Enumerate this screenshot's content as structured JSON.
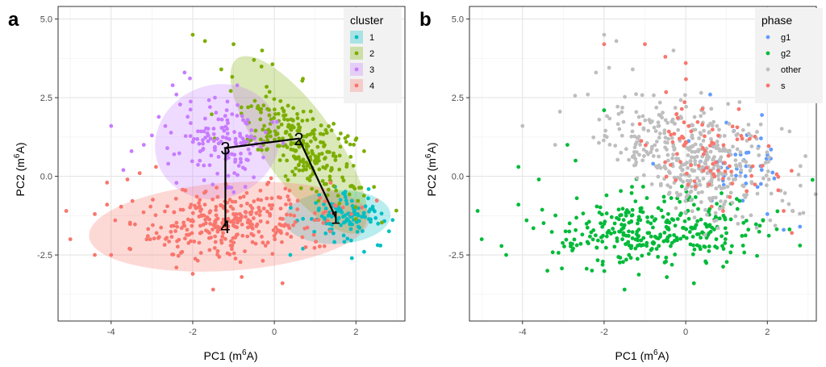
{
  "panels": [
    {
      "tag": "a",
      "legend_title": "cluster"
    },
    {
      "tag": "b",
      "legend_title": "phase"
    }
  ],
  "chart_data": [
    {
      "type": "scatter",
      "panel": "a",
      "xlabel": "PC1 (m6A)",
      "ylabel": "PC2 (m6A)",
      "xlim": [
        -5.3,
        3.2
      ],
      "ylim": [
        -4.6,
        5.4
      ],
      "x_ticks": [
        -4,
        -2,
        0,
        2
      ],
      "y_ticks": [
        -2.5,
        0.0,
        2.5,
        5.0
      ],
      "grid": true,
      "legend_position": "top-right",
      "legend_title": "cluster",
      "series": [
        {
          "name": "1",
          "color": "#00BFC4",
          "n": 110,
          "center": [
            1.7,
            -1.35
          ],
          "sd": [
            0.45,
            0.35
          ],
          "rot": 0.15,
          "sparse": [
            [
              0.7,
              -2.3
            ],
            [
              1.9,
              -2.6
            ],
            [
              2.6,
              -2.2
            ],
            [
              1.1,
              -0.6
            ],
            [
              2.3,
              -0.7
            ],
            [
              0.4,
              -1.0
            ],
            [
              2.2,
              -2.4
            ]
          ]
        },
        {
          "name": "2",
          "color": "#7CAE00",
          "n": 260,
          "center": [
            0.7,
            1.0
          ],
          "sd": [
            1.0,
            0.45
          ],
          "rot": -0.9,
          "sparse": [
            [
              -2.0,
              4.5
            ],
            [
              -1.7,
              4.3
            ],
            [
              -1.0,
              4.2
            ],
            [
              -0.3,
              4.0
            ],
            [
              -0.5,
              3.7
            ],
            [
              -1.3,
              3.4
            ],
            [
              0.7,
              3.1
            ],
            [
              2.2,
              0.8
            ],
            [
              1.9,
              -0.3
            ]
          ]
        },
        {
          "name": "3",
          "color": "#C77CFF",
          "n": 140,
          "center": [
            -1.3,
            1.2
          ],
          "sd": [
            0.6,
            0.7
          ],
          "rot": 0.5,
          "sparse": [
            [
              -4.0,
              1.6
            ],
            [
              -3.2,
              1.0
            ],
            [
              -3.5,
              0.8
            ],
            [
              -2.4,
              2.6
            ],
            [
              -3.0,
              1.3
            ],
            [
              -2.2,
              3.3
            ],
            [
              -2.6,
              0.4
            ],
            [
              -3.7,
              0.2
            ]
          ]
        },
        {
          "name": "4",
          "color": "#F8766D",
          "n": 320,
          "center": [
            -1.0,
            -1.5
          ],
          "sd": [
            1.15,
            0.55
          ],
          "rot": 0.05,
          "sparse": [
            [
              -5.1,
              -1.1
            ],
            [
              -5.0,
              -2.0
            ],
            [
              -4.4,
              -1.2
            ],
            [
              -4.0,
              -2.5
            ],
            [
              -4.4,
              -2.5
            ],
            [
              -4.1,
              -0.9
            ],
            [
              -3.9,
              -1.4
            ],
            [
              -4.1,
              -0.2
            ],
            [
              -3.6,
              -0.1
            ],
            [
              -3.3,
              0.1
            ],
            [
              -3.1,
              -1.9
            ],
            [
              -2.9,
              0.3
            ],
            [
              -2.4,
              -2.9
            ],
            [
              -1.5,
              -3.6
            ],
            [
              0.2,
              -3.4
            ],
            [
              -0.8,
              -3.2
            ],
            [
              -2.0,
              -3.1
            ]
          ]
        }
      ],
      "ellipses": [
        {
          "cluster": "1",
          "color": "#00BFC4",
          "cx": 1.55,
          "cy": -1.3,
          "rx": 1.3,
          "ry": 0.85,
          "rot": 0.05
        },
        {
          "cluster": "2",
          "color": "#7CAE00",
          "cx": 0.6,
          "cy": 1.0,
          "rx": 2.6,
          "ry": 1.15,
          "rot": -0.95
        },
        {
          "cluster": "3",
          "color": "#C77CFF",
          "cx": -1.4,
          "cy": 1.1,
          "rx": 1.55,
          "ry": 1.8,
          "rot": 0.4
        },
        {
          "cluster": "4",
          "color": "#F8766D",
          "cx": -1.1,
          "cy": -1.6,
          "rx": 3.45,
          "ry": 1.4,
          "rot": 0.07
        }
      ],
      "trajectory": [
        [
          -1.2,
          0.9
        ],
        [
          0.6,
          1.2
        ],
        [
          1.5,
          -1.3
        ]
      ],
      "trajectory_branch": [
        [
          -1.2,
          0.9
        ],
        [
          -1.2,
          -1.6
        ]
      ],
      "cluster_labels": [
        {
          "label": "3",
          "x": -1.2,
          "y": 0.9
        },
        {
          "label": "2",
          "x": 0.6,
          "y": 1.2
        },
        {
          "label": "1",
          "x": 1.5,
          "y": -1.3
        },
        {
          "label": "4",
          "x": -1.2,
          "y": -1.6
        }
      ]
    },
    {
      "type": "scatter",
      "panel": "b",
      "xlabel": "PC1 (m6A)",
      "ylabel": "PC2 (m6A)",
      "xlim": [
        -5.3,
        3.2
      ],
      "ylim": [
        -4.6,
        5.4
      ],
      "x_ticks": [
        -4,
        -2,
        0,
        2
      ],
      "y_ticks": [
        -2.5,
        0.0,
        2.5,
        5.0
      ],
      "grid": true,
      "legend_position": "top-right",
      "legend_title": "phase",
      "series": [
        {
          "name": "g1",
          "color": "#619CFF",
          "n": 45,
          "center": [
            1.3,
            0.3
          ],
          "sd": [
            0.6,
            0.7
          ],
          "rot": -0.7,
          "sparse": [
            [
              2.4,
              -1.7
            ],
            [
              2.8,
              -1.6
            ],
            [
              2.0,
              -1.2
            ],
            [
              0.6,
              2.6
            ],
            [
              -0.8,
              0.4
            ]
          ]
        },
        {
          "name": "g2",
          "color": "#00BA38",
          "n": 330,
          "center": [
            -0.6,
            -1.7
          ],
          "sd": [
            1.3,
            0.55
          ],
          "rot": 0.05,
          "sparse": [
            [
              -5.1,
              -1.1
            ],
            [
              -5.0,
              -2.0
            ],
            [
              -4.4,
              -2.5
            ],
            [
              -4.1,
              -0.9
            ],
            [
              -3.9,
              -1.4
            ],
            [
              -4.1,
              0.3
            ],
            [
              -3.6,
              -0.1
            ],
            [
              -2.9,
              1.0
            ],
            [
              -2.7,
              0.5
            ],
            [
              -2.0,
              2.1
            ],
            [
              -1.5,
              -3.6
            ],
            [
              0.2,
              -3.4
            ],
            [
              2.8,
              -2.2
            ]
          ]
        },
        {
          "name": "other",
          "color": "#BEBEBE",
          "n": 430,
          "center": [
            0.2,
            0.6
          ],
          "sd": [
            1.15,
            0.75
          ],
          "rot": -0.6,
          "sparse": [
            [
              -2.0,
              4.5
            ],
            [
              -1.7,
              4.3
            ],
            [
              -4.0,
              1.6
            ],
            [
              -3.2,
              1.0
            ],
            [
              -2.4,
              2.6
            ],
            [
              -0.3,
              4.0
            ],
            [
              -1.3,
              3.4
            ],
            [
              -2.2,
              3.3
            ]
          ]
        },
        {
          "name": "s",
          "color": "#F8766D",
          "n": 85,
          "center": [
            0.5,
            0.9
          ],
          "sd": [
            0.9,
            0.7
          ],
          "rot": -0.7,
          "sparse": [
            [
              -2.0,
              4.2
            ],
            [
              -1.0,
              4.2
            ],
            [
              -0.5,
              3.8
            ],
            [
              0.0,
              3.6
            ],
            [
              2.4,
              -1.1
            ],
            [
              2.6,
              -1.8
            ]
          ]
        }
      ]
    }
  ]
}
